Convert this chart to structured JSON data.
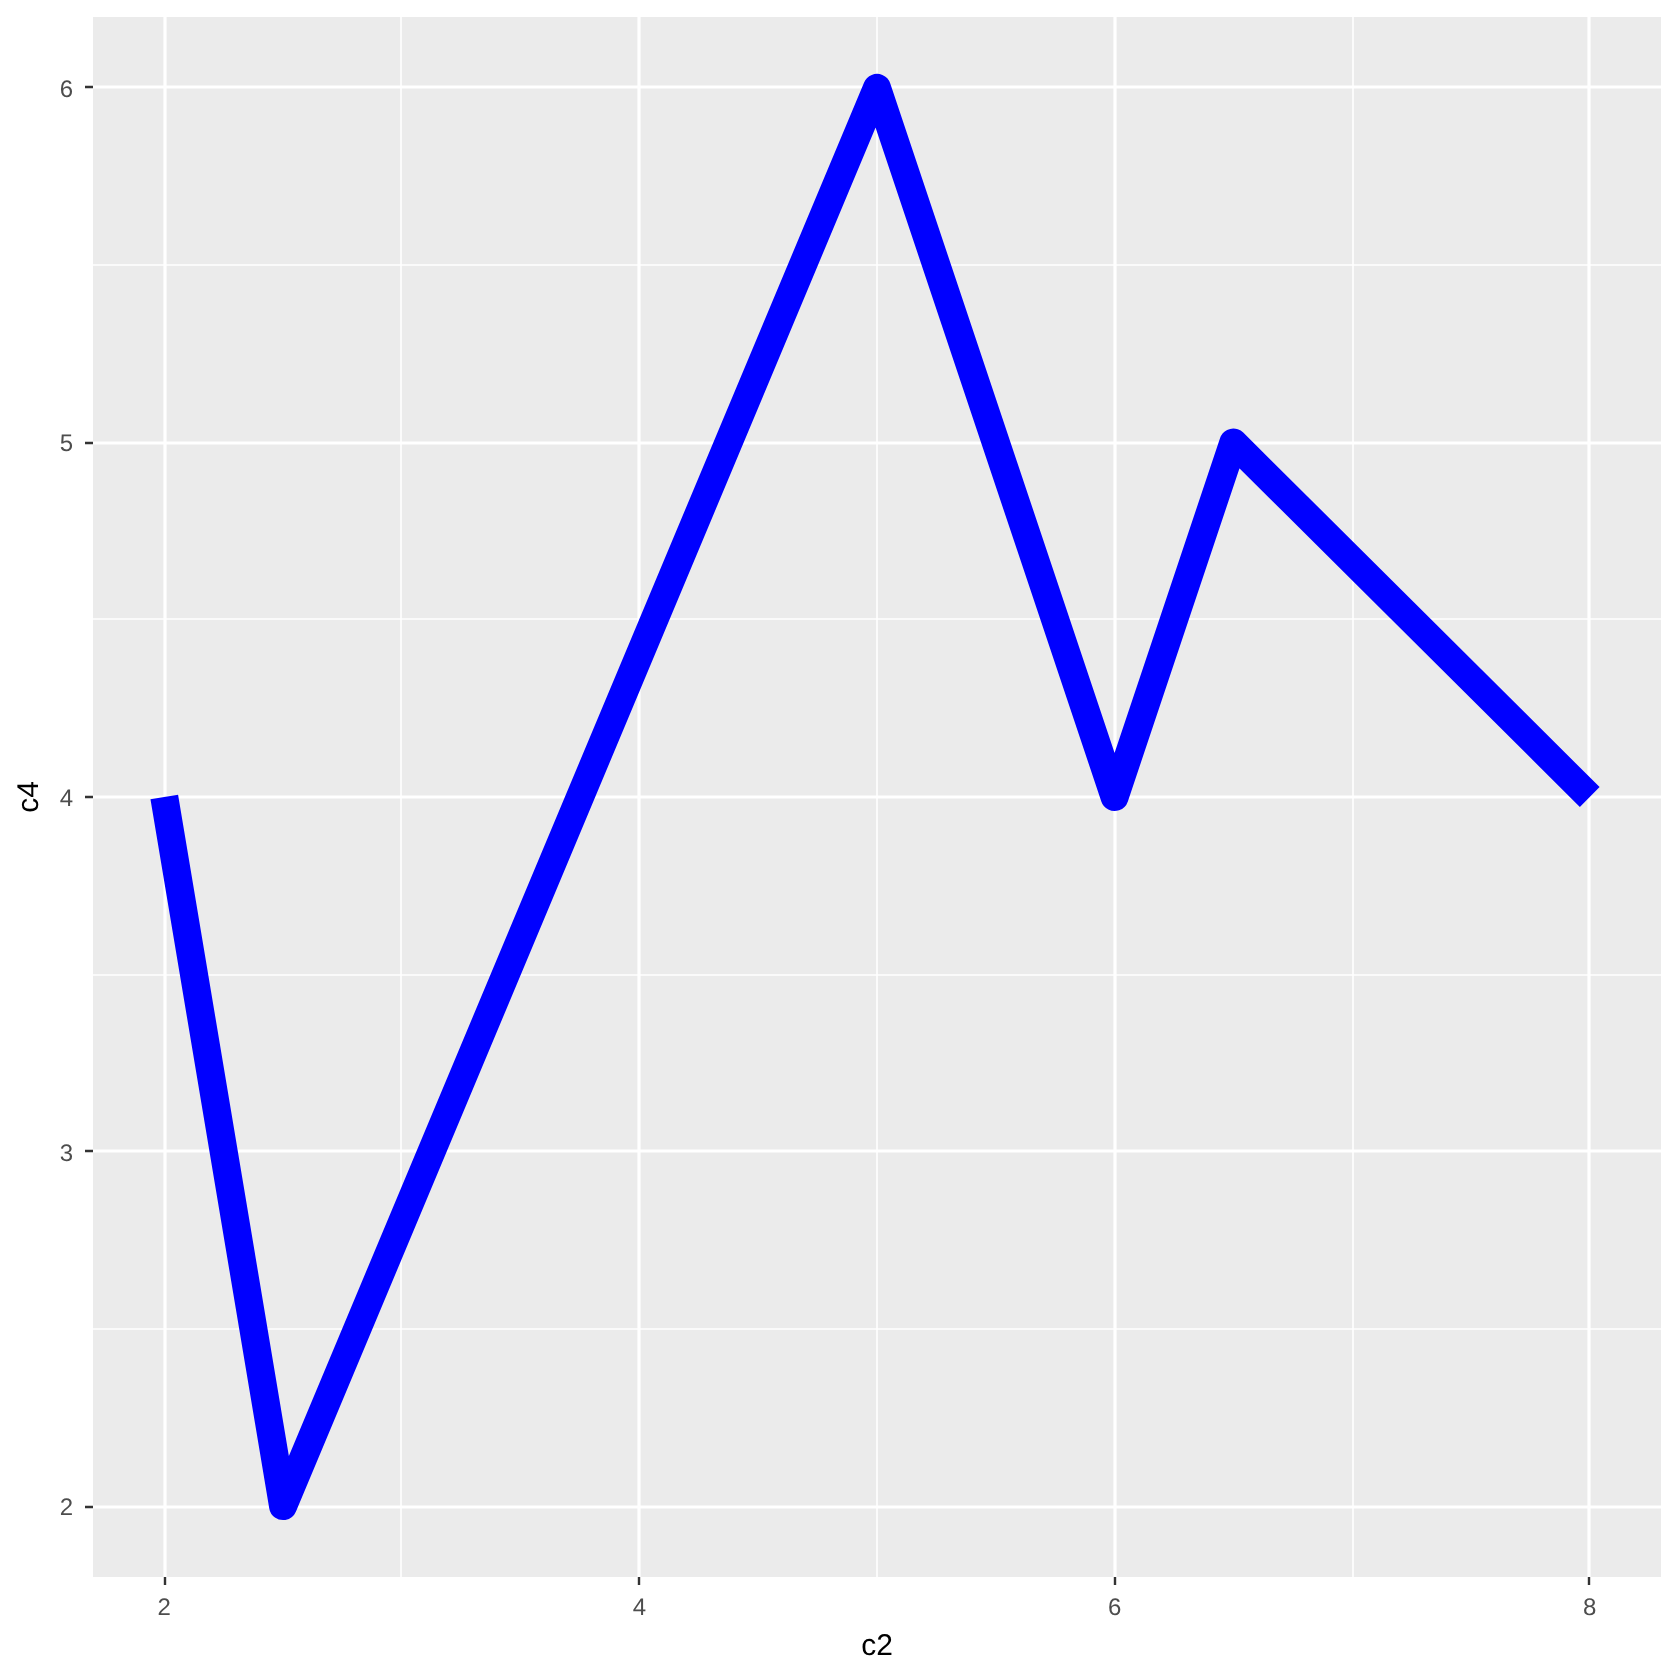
{
  "chart_data": {
    "type": "line",
    "xlabel": "c2",
    "ylabel": "c4",
    "x": [
      2,
      2.5,
      5,
      6,
      6.5,
      8
    ],
    "series": [
      {
        "color": "#0000ff",
        "values": [
          4,
          2,
          6,
          4,
          5,
          4
        ]
      }
    ],
    "xlim": [
      1.7,
      8.3
    ],
    "ylim": [
      1.8,
      6.2
    ],
    "xticks": [
      2,
      4,
      6,
      8
    ],
    "yticks": [
      2,
      3,
      4,
      5,
      6
    ],
    "grid": true,
    "line_style": "solid"
  }
}
